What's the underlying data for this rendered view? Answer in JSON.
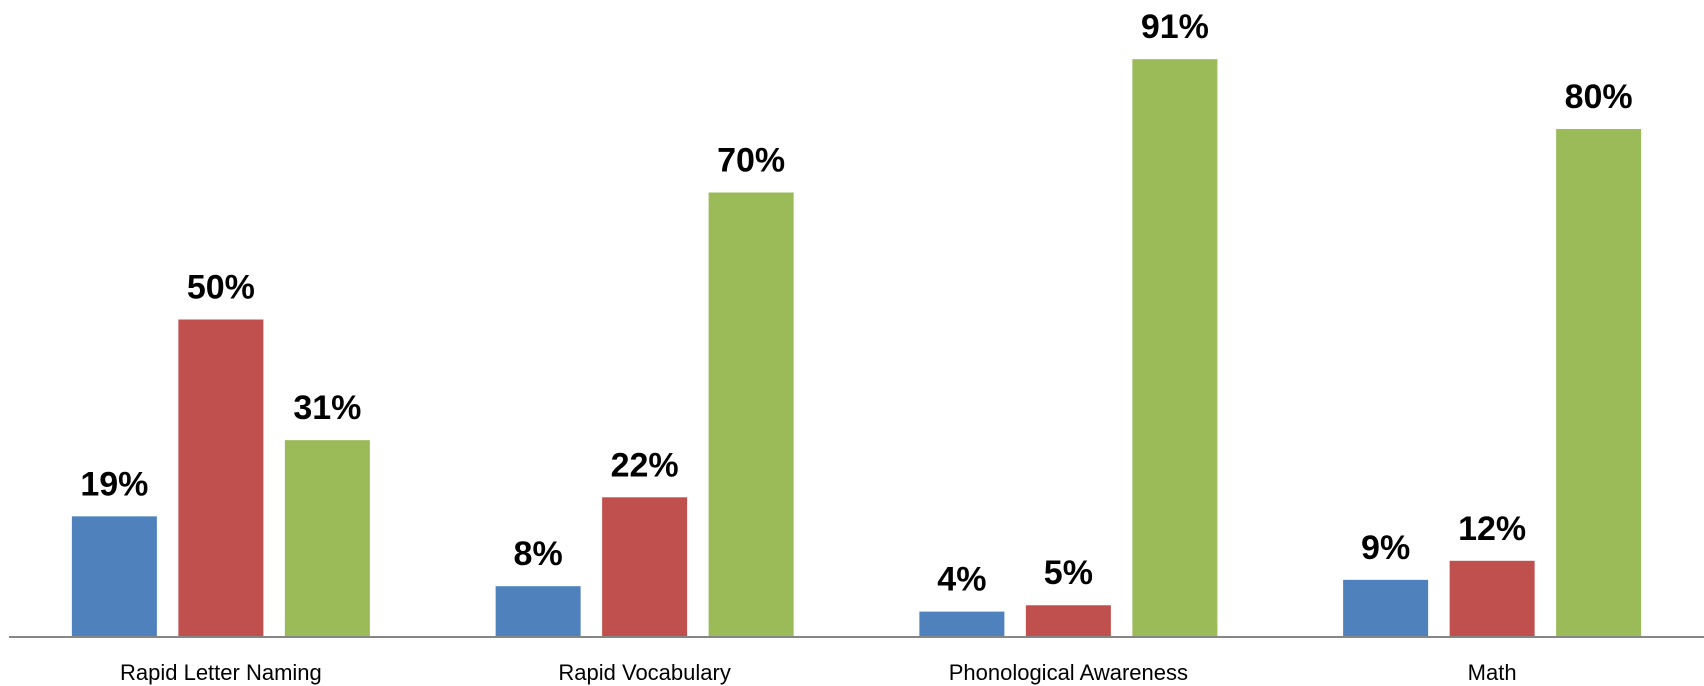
{
  "chart_data": {
    "type": "bar",
    "categories": [
      "Rapid Letter Naming",
      "Rapid Vocabulary",
      "Phonological Awareness",
      "Math"
    ],
    "series": [
      {
        "color": "#4f81bd",
        "values": [
          19,
          8,
          4,
          9
        ],
        "value_labels": [
          "19%",
          "8%",
          "4%",
          "9%"
        ]
      },
      {
        "color": "#c0504d",
        "values": [
          50,
          22,
          5,
          12
        ],
        "value_labels": [
          "50%",
          "22%",
          "5%",
          "12%"
        ]
      },
      {
        "color": "#9bbb59",
        "values": [
          31,
          70,
          91,
          80
        ],
        "value_labels": [
          "31%",
          "70%",
          "91%",
          "80%"
        ]
      }
    ],
    "ylim": [
      0,
      100
    ]
  }
}
